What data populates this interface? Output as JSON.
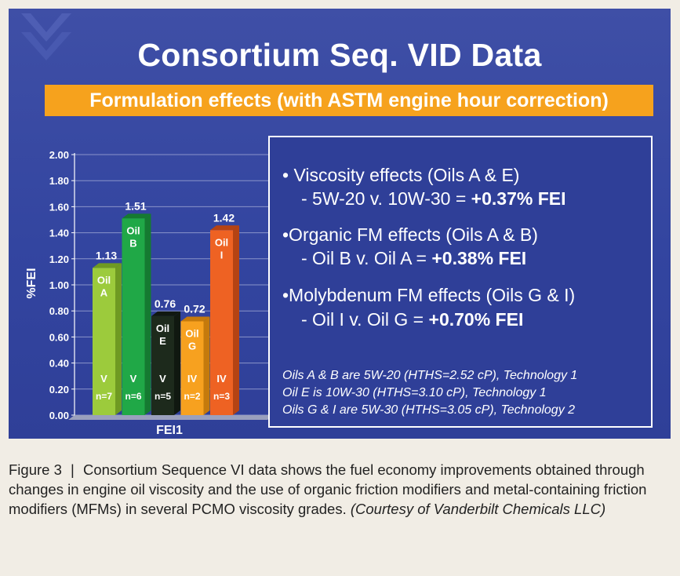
{
  "slide": {
    "title": "Consortium Seq. VID Data",
    "subtitle": "Formulation effects (with ASTM engine hour correction)"
  },
  "chart_data": {
    "type": "bar",
    "ylabel": "%FEI",
    "xlabel": "FEI1",
    "ylim": [
      0,
      2.0
    ],
    "yticks": [
      "0.00",
      "0.20",
      "0.40",
      "0.60",
      "0.80",
      "1.00",
      "1.20",
      "1.40",
      "1.60",
      "1.80",
      "2.00"
    ],
    "bars": [
      {
        "oil": "Oil",
        "letter": "A",
        "value": 1.13,
        "value_label": "1.13",
        "tech": "V",
        "n": "n=7",
        "color": "#9ccb3c",
        "side": "#6f9a22"
      },
      {
        "oil": "Oil",
        "letter": "B",
        "value": 1.51,
        "value_label": "1.51",
        "tech": "V",
        "n": "n=6",
        "color": "#20a847",
        "side": "#157a31"
      },
      {
        "oil": "Oil",
        "letter": "E",
        "value": 0.76,
        "value_label": "0.76",
        "tech": "V",
        "n": "n=5",
        "color": "#1d2a1c",
        "side": "#101810"
      },
      {
        "oil": "Oil",
        "letter": "G",
        "value": 0.72,
        "value_label": "0.72",
        "tech": "IV",
        "n": "n=2",
        "color": "#f7a11f",
        "side": "#c57a0c"
      },
      {
        "oil": "Oil",
        "letter": "I",
        "value": 1.42,
        "value_label": "1.42",
        "tech": "IV",
        "n": "n=3",
        "color": "#ee6223",
        "side": "#b54313"
      }
    ]
  },
  "info": {
    "b1": "• Viscosity effects (Oils A & E)",
    "d1_text": "- 5W-20 v. 10W-30 = ",
    "d1_value": "+0.37% FEI",
    "b2": "•Organic FM effects (Oils A & B)",
    "d2_text": "- Oil B v. Oil A = ",
    "d2_value": "+0.38% FEI",
    "b3": "•Molybdenum FM effects (Oils G & I)",
    "d3_text": "- Oil I v. Oil G = ",
    "d3_value": "+0.70% FEI",
    "note1": "Oils A & B are 5W-20 (HTHS=2.52 cP), Technology 1",
    "note2": "Oil E is 10W-30 (HTHS=3.10 cP), Technology 1",
    "note3": "Oils G & I are 5W-30 (HTHS=3.05 cP), Technology 2"
  },
  "caption": {
    "figure": "Figure 3",
    "separator": "|",
    "text": "Consortium Sequence VI data shows the fuel economy improvements obtained through changes in engine oil viscosity and the use of organic friction modifiers and metal-containing friction modifiers (MFMs) in several PCMO viscosity grades.",
    "credit": "(Courtesy of Vanderbilt Chemicals LLC)"
  },
  "colors": {
    "slide_bg": "#3345a0",
    "accent": "#f6a21d",
    "page_bg": "#f1ede5"
  }
}
